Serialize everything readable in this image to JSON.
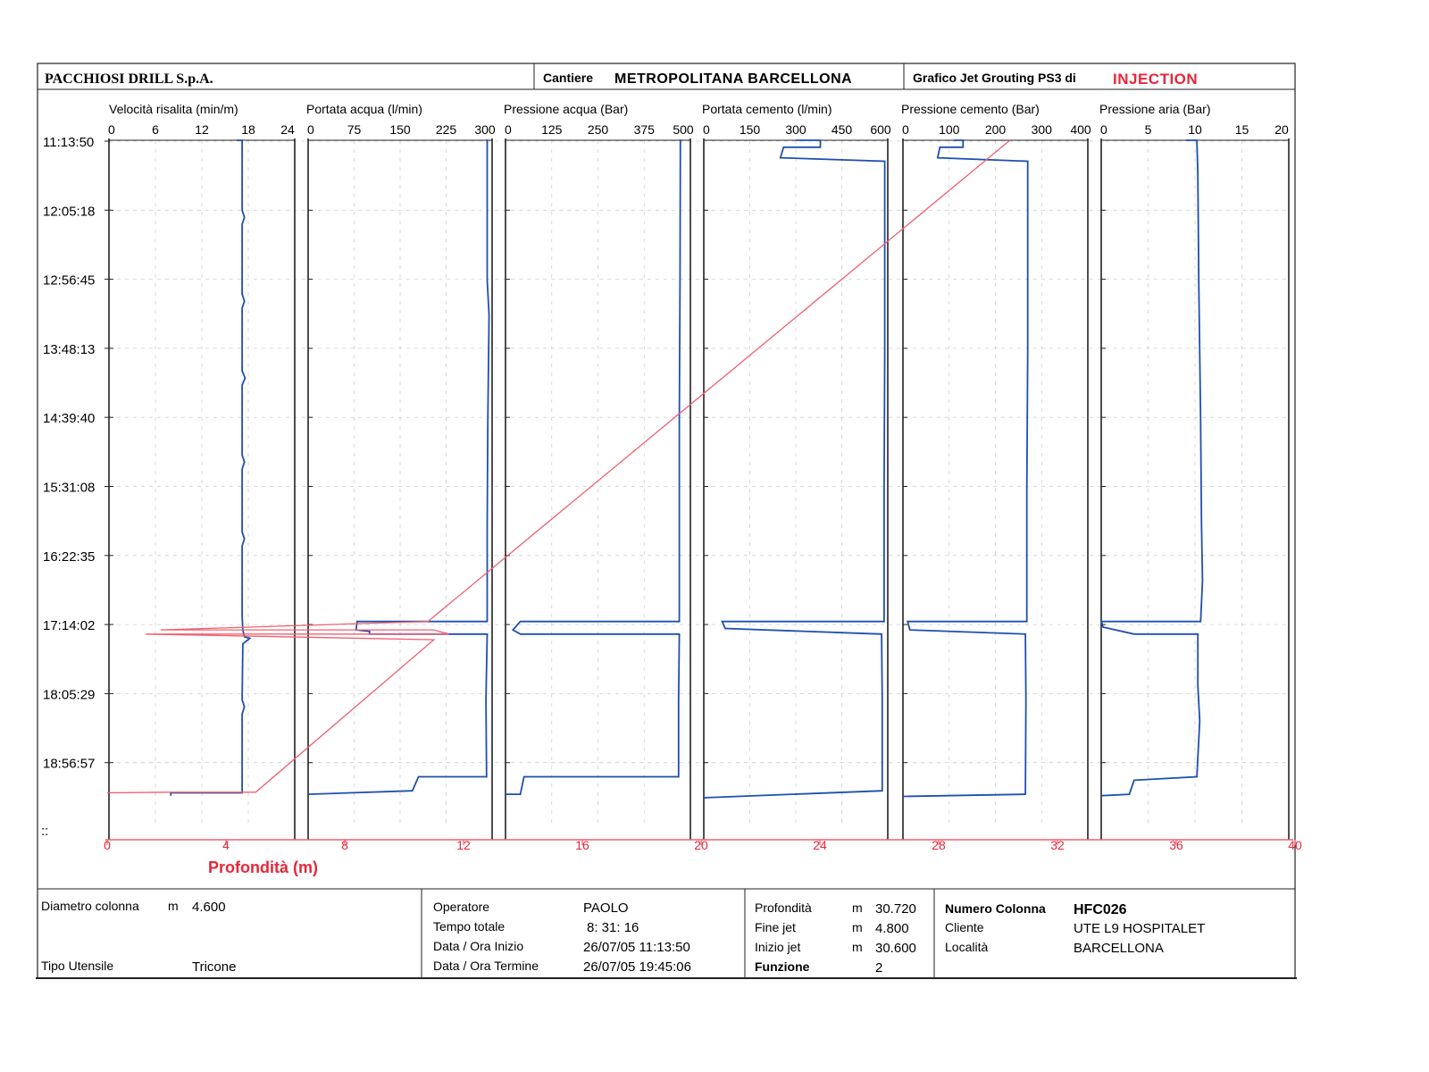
{
  "header": {
    "company": "PACCHIOSI DRILL S.p.A.",
    "site_label": "Cantiere",
    "site_value": "METROPOLITANA BARCELLONA",
    "graph_label": "Grafico Jet Grouting PS3 di",
    "graph_value": "INJECTION"
  },
  "chart_data": {
    "type": "line",
    "time_axis": {
      "labels": [
        "11:13:50",
        "12:05:18",
        "12:56:45",
        "13:48:13",
        "14:39:40",
        "15:31:08",
        "16:22:35",
        "17:14:02",
        "18:05:29",
        "18:56:57"
      ],
      "marker": "::"
    },
    "depth_axis": {
      "label": "Profondità (m)",
      "ticks": [
        "0",
        "4",
        "8",
        "12",
        "16",
        "20",
        "24",
        "28",
        "32",
        "36",
        "40"
      ],
      "range": [
        0,
        40
      ]
    },
    "panels": [
      {
        "title": "Velocità risalita (min/m)",
        "ticks": [
          "0",
          "6",
          "12",
          "18",
          "24"
        ],
        "range": [
          0,
          24
        ]
      },
      {
        "title": "Portata acqua (l/min)",
        "ticks": [
          "0",
          "75",
          "150",
          "225",
          "300"
        ],
        "range": [
          0,
          300
        ]
      },
      {
        "title": "Pressione acqua (Bar)",
        "ticks": [
          "0",
          "125",
          "250",
          "375",
          "500"
        ],
        "range": [
          0,
          500
        ]
      },
      {
        "title": "Portata cemento (l/min)",
        "ticks": [
          "0",
          "150",
          "300",
          "450",
          "600"
        ],
        "range": [
          0,
          600
        ]
      },
      {
        "title": "Pressione cemento (Bar)",
        "ticks": [
          "0",
          "100",
          "200",
          "300",
          "400"
        ],
        "range": [
          0,
          400
        ]
      },
      {
        "title": "Pressione aria (Bar)",
        "ticks": [
          "0",
          "5",
          "10",
          "15",
          "20"
        ],
        "range": [
          0,
          20
        ]
      }
    ],
    "colors": {
      "series": "#1f4fb0",
      "depth": "#f06070",
      "accent": "#e8263a",
      "grid": "#cfcfcf",
      "frame": "#222222"
    }
  },
  "footer": {
    "diametro_label": "Diametro colonna",
    "diametro_unit": "m",
    "diametro_value": "4.600",
    "utensile_label": "Tipo Utensile",
    "utensile_value": "Tricone",
    "operatore_label": "Operatore",
    "operatore_value": "PAOLO",
    "tempo_label": "Tempo totale",
    "tempo_value": "8: 31: 16",
    "inizio_label": "Data / Ora Inizio",
    "inizio_value": "26/07/05 11:13:50",
    "termine_label": "Data / Ora Termine",
    "termine_value": "26/07/05 19:45:06",
    "profondita_label": "Profondità",
    "profondita_unit": "m",
    "profondita_value": "30.720",
    "finejet_label": "Fine jet",
    "finejet_unit": "m",
    "finejet_value": "4.800",
    "iniziojet_label": "Inizio jet",
    "iniziojet_unit": "m",
    "iniziojet_value": "30.600",
    "funzione_label": "Funzione",
    "funzione_value": "2",
    "numero_label": "Numero Colonna",
    "numero_value": "HFC026",
    "cliente_label": "Cliente",
    "cliente_value": "UTE L9 HOSPITALET",
    "localita_label": "Località",
    "localita_value": "BARCELLONA"
  }
}
